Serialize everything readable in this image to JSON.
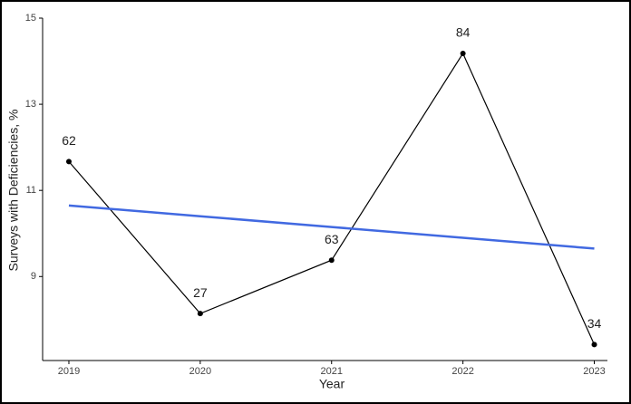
{
  "chart_data": {
    "type": "line",
    "x_label": "Year",
    "y_label": "Surveys with Deficiencies, %",
    "x": [
      2019,
      2020,
      2021,
      2022,
      2023
    ],
    "values": [
      11.67,
      8.14,
      9.38,
      14.18,
      7.42
    ],
    "color": "#000000",
    "point_labels": [
      "62",
      "27",
      "63",
      "84",
      "34"
    ],
    "trend": {
      "color": "#4169e1",
      "values": [
        10.65,
        10.4,
        10.15,
        9.9,
        9.65
      ]
    },
    "xlim": [
      2018.8,
      2023.1
    ],
    "xticks": [
      2019,
      2020,
      2021,
      2022,
      2023
    ],
    "ylim": [
      7.05,
      15
    ],
    "yticks": [
      9,
      11,
      13,
      15
    ],
    "grid": false
  }
}
